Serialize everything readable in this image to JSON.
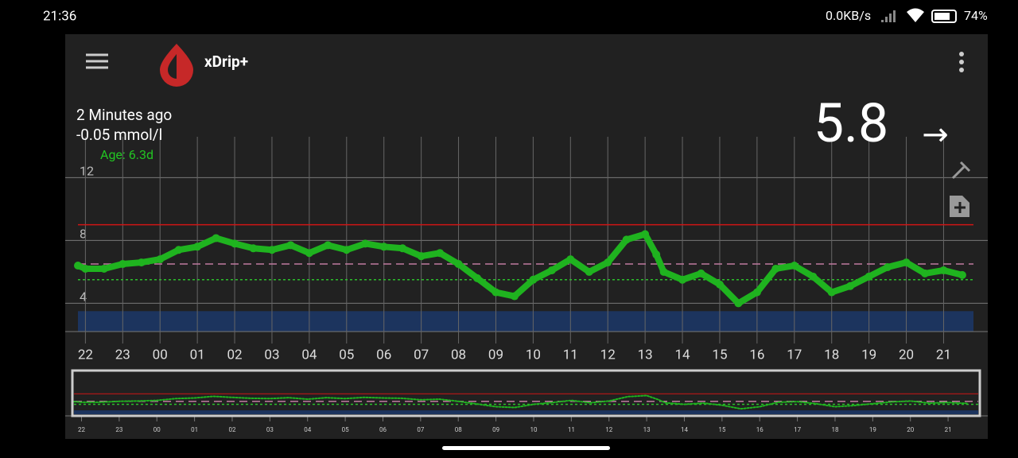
{
  "status_bar": {
    "time": "21:36",
    "net": "0.0KB/s",
    "battery": "74%"
  },
  "app_bar": {
    "title": "xDrip+"
  },
  "reading": {
    "ago": "2 Minutes ago",
    "delta": "-0.05 mmol/l",
    "age": "Age: 6.3d",
    "value": "5.8",
    "arrow": "→"
  },
  "chart_data": {
    "type": "line",
    "x": [
      -0.2,
      0,
      0.5,
      1,
      1.5,
      2,
      2.5,
      3,
      3.5,
      4,
      4.5,
      5,
      5.5,
      6,
      6.5,
      7,
      7.5,
      8,
      8.5,
      9,
      9.5,
      10,
      10.5,
      11,
      11.5,
      12,
      12.5,
      13,
      13.5,
      14,
      14.5,
      15,
      15.3,
      15.5,
      16,
      16.5,
      17,
      17.5,
      18,
      18.5,
      19,
      19.5,
      20,
      20.5,
      21,
      21.5,
      22,
      22.5,
      23,
      23.5
    ],
    "series": [
      {
        "color": "#1fb31f",
        "values": [
          6.4,
          6.2,
          6.2,
          6.5,
          6.6,
          6.8,
          7.4,
          7.6,
          8.15,
          7.8,
          7.5,
          7.4,
          7.7,
          7.2,
          7.7,
          7.4,
          7.8,
          7.6,
          7.5,
          7.0,
          7.2,
          6.5,
          5.6,
          4.7,
          4.45,
          5.5,
          6.1,
          6.8,
          6.0,
          6.6,
          8.05,
          8.4,
          7.1,
          6.0,
          5.5,
          5.9,
          5.2,
          4.0,
          4.7,
          6.2,
          6.4,
          5.7,
          4.7,
          5.1,
          5.7,
          6.3,
          6.6,
          5.9,
          6.1,
          5.8
        ]
      }
    ],
    "xlim": [
      -0.2,
      23.8
    ],
    "xticks": [
      {
        "value": 0,
        "label": "22"
      },
      {
        "value": 1,
        "label": "23"
      },
      {
        "value": 2,
        "label": "00"
      },
      {
        "value": 3,
        "label": "01"
      },
      {
        "value": 4,
        "label": "02"
      },
      {
        "value": 5,
        "label": "03"
      },
      {
        "value": 6,
        "label": "04"
      },
      {
        "value": 7,
        "label": "05"
      },
      {
        "value": 8,
        "label": "06"
      },
      {
        "value": 9,
        "label": "07"
      },
      {
        "value": 10,
        "label": "08"
      },
      {
        "value": 11,
        "label": "09"
      },
      {
        "value": 12,
        "label": "10"
      },
      {
        "value": 13,
        "label": "11"
      },
      {
        "value": 14,
        "label": "12"
      },
      {
        "value": 15,
        "label": "13"
      },
      {
        "value": 16,
        "label": "14"
      },
      {
        "value": 17,
        "label": "15"
      },
      {
        "value": 18,
        "label": "16"
      },
      {
        "value": 19,
        "label": "17"
      },
      {
        "value": 20,
        "label": "18"
      },
      {
        "value": 21,
        "label": "19"
      },
      {
        "value": 22,
        "label": "20"
      },
      {
        "value": 23,
        "label": "21"
      }
    ],
    "ylim": [
      2.2,
      14.6
    ],
    "yticks": [
      4,
      8,
      12
    ],
    "grid": true,
    "high_line": {
      "value": 9,
      "color": "#d01515"
    },
    "target_high": {
      "value": 6.5,
      "color": "#c07aa0"
    },
    "target_low": {
      "value": 5.5,
      "color": "#2bbf2b"
    },
    "low_band": {
      "value": 3.5,
      "color": "#1c3a6e"
    }
  }
}
